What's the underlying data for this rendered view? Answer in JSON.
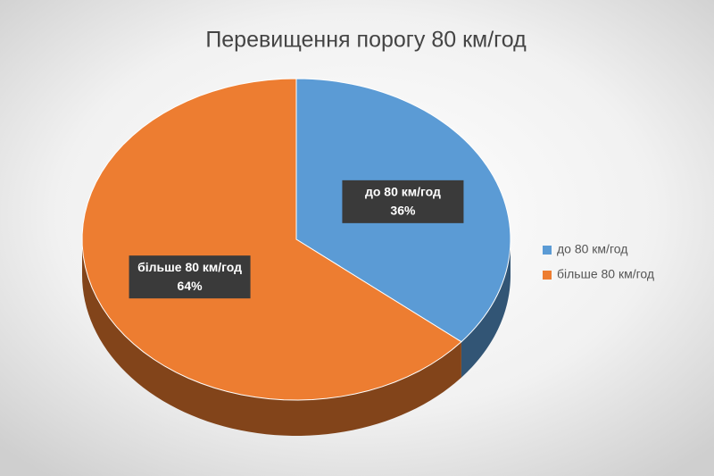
{
  "chart_data": {
    "type": "pie",
    "title": "Перевищення порогу 80 км/год",
    "categories": [
      "до 80 км/год",
      "більше 80 км/год"
    ],
    "values": [
      36,
      64
    ],
    "value_labels": [
      "36%",
      "64%"
    ],
    "colors": [
      "#5b9bd5",
      "#ed7d31"
    ],
    "legend": "right"
  }
}
